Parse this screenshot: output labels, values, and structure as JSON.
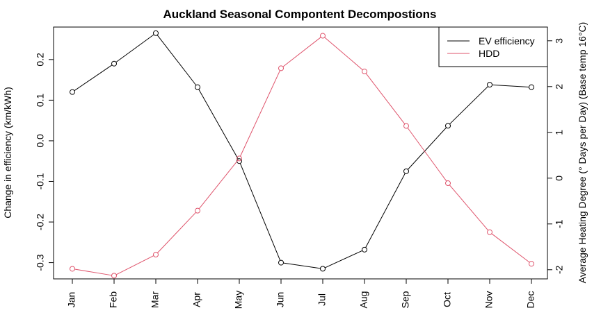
{
  "chart_data": {
    "type": "line",
    "title": "Auckland Seasonal Compontent Decompostions",
    "categories": [
      "Jan",
      "Feb",
      "Mar",
      "Apr",
      "May",
      "Jun",
      "Jul",
      "Aug",
      "Sep",
      "Oct",
      "Nov",
      "Dec"
    ],
    "ylabel": "Change in efficiency (km/kWh)",
    "y2label": "Average Heating Degree (° Days per Day) (Base temp 16°C)",
    "ylim": [
      -0.34,
      0.28
    ],
    "y2lim": [
      -2.2,
      3.3
    ],
    "yticks": [
      -0.3,
      -0.2,
      -0.1,
      0.0,
      0.1,
      0.2
    ],
    "yticklabels": [
      "-0.3",
      "-0.2",
      "-0.1",
      "0.0",
      "0.1",
      "0.2"
    ],
    "y2ticks": [
      -2,
      -1,
      0,
      1,
      2,
      3
    ],
    "y2ticklabels": [
      "-2",
      "-1",
      "0",
      "1",
      "2",
      "3"
    ],
    "legend_position": "top-right",
    "series": [
      {
        "name": "EV efficiency",
        "axis": "left",
        "color": "#000000",
        "values": [
          0.12,
          0.19,
          0.265,
          0.132,
          -0.05,
          -0.3,
          -0.315,
          -0.268,
          -0.075,
          0.037,
          0.138,
          0.132
        ]
      },
      {
        "name": "HDD",
        "axis": "right",
        "color": "#df536b",
        "values": [
          -1.98,
          -2.13,
          -1.67,
          -0.71,
          0.43,
          2.4,
          3.11,
          2.33,
          1.14,
          -0.11,
          -1.18,
          -1.87
        ]
      }
    ]
  }
}
